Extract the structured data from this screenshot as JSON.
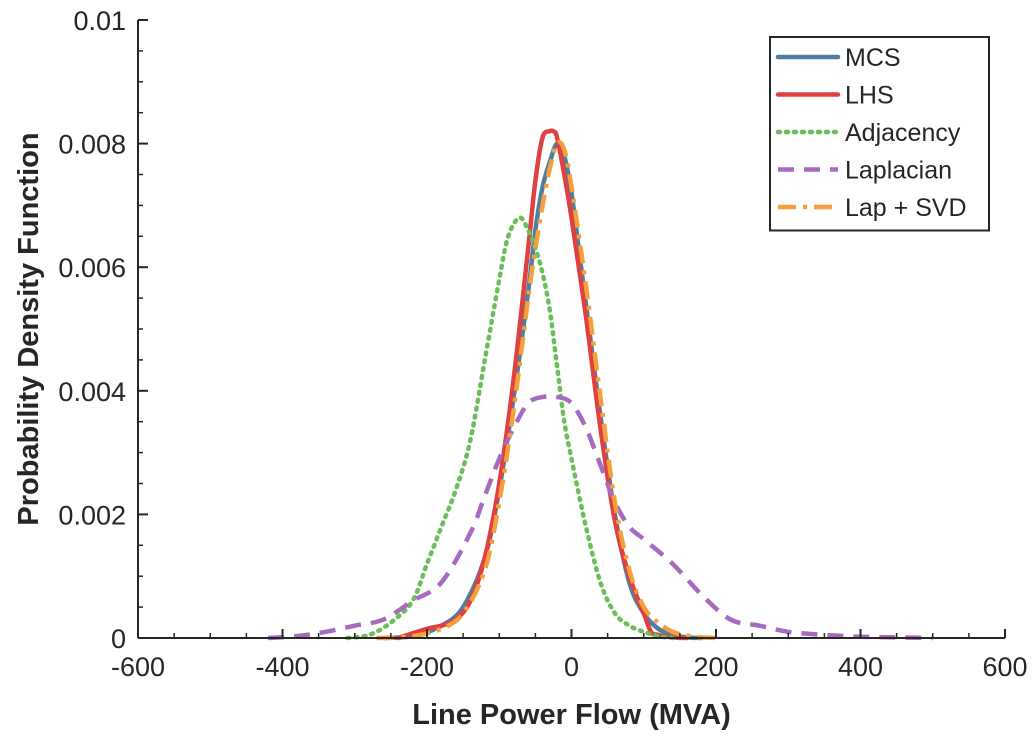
{
  "chart_data": {
    "type": "line",
    "xlabel": "Line Power Flow (MVA)",
    "ylabel": "Probability Density Function",
    "xlim": [
      -600,
      600
    ],
    "ylim": [
      0,
      0.01
    ],
    "xticks": [
      -600,
      -400,
      -200,
      0,
      200,
      400,
      600
    ],
    "xtick_labels": [
      "-600",
      "-400",
      "-200",
      "0",
      "200",
      "400",
      "600"
    ],
    "yticks": [
      0,
      0.002,
      0.004,
      0.006,
      0.008,
      0.01
    ],
    "ytick_labels": [
      "0",
      "0.002",
      "0.004",
      "0.006",
      "0.008",
      "0.01"
    ],
    "grid": false,
    "legend_position": "top-right",
    "series": [
      {
        "name": "MCS",
        "color": "#4f7ea3",
        "dash": "solid",
        "x": [
          -260,
          -220,
          -180,
          -150,
          -120,
          -100,
          -80,
          -60,
          -50,
          -40,
          -30,
          -20,
          -10,
          0,
          10,
          20,
          40,
          60,
          80,
          100,
          120,
          140,
          160,
          180
        ],
        "y": [
          0.0,
          3e-05,
          0.0002,
          0.0005,
          0.0013,
          0.0024,
          0.0039,
          0.0056,
          0.0066,
          0.0073,
          0.0077,
          0.008,
          0.0078,
          0.0072,
          0.0063,
          0.0054,
          0.0036,
          0.002,
          0.0009,
          0.0004,
          0.00015,
          5e-05,
          1e-05,
          0.0
        ]
      },
      {
        "name": "LHS",
        "color": "#e04040",
        "dash": "solid",
        "x": [
          -240,
          -200,
          -180,
          -160,
          -140,
          -120,
          -100,
          -80,
          -60,
          -50,
          -40,
          -30,
          -25,
          -20,
          -10,
          0,
          20,
          40,
          60,
          80,
          100,
          110,
          120,
          140,
          160
        ],
        "y": [
          0.0,
          0.00015,
          0.0002,
          0.0003,
          0.0006,
          0.0013,
          0.0025,
          0.0042,
          0.0063,
          0.0074,
          0.0081,
          0.0082,
          0.0082,
          0.0081,
          0.0075,
          0.0068,
          0.0052,
          0.0034,
          0.0019,
          0.001,
          0.0004,
          0.0001,
          5e-05,
          1e-05,
          0.0
        ]
      },
      {
        "name": "Adjacency",
        "color": "#6bbf59",
        "dash": "dotted",
        "x": [
          -310,
          -280,
          -250,
          -220,
          -200,
          -180,
          -160,
          -140,
          -120,
          -100,
          -90,
          -80,
          -70,
          -60,
          -50,
          -40,
          -30,
          -20,
          -10,
          0,
          20,
          40,
          60,
          80,
          100,
          120,
          140
        ],
        "y": [
          0.0,
          5e-05,
          0.00025,
          0.0006,
          0.0012,
          0.0018,
          0.0024,
          0.0032,
          0.0045,
          0.0058,
          0.0064,
          0.0067,
          0.0068,
          0.0066,
          0.0063,
          0.0059,
          0.0053,
          0.0044,
          0.0035,
          0.0029,
          0.0018,
          0.0009,
          0.0004,
          0.0002,
          0.0001,
          3e-05,
          0.0
        ]
      },
      {
        "name": "Laplacian",
        "color": "#a66bbe",
        "dash": "dashed",
        "x": [
          -420,
          -380,
          -340,
          -300,
          -260,
          -220,
          -180,
          -140,
          -120,
          -100,
          -80,
          -60,
          -40,
          -20,
          0,
          20,
          40,
          60,
          80,
          100,
          140,
          180,
          220,
          260,
          300,
          350,
          400,
          450,
          500
        ],
        "y": [
          0.0,
          3e-05,
          0.0001,
          0.0002,
          0.0003,
          0.0006,
          0.0009,
          0.0017,
          0.0023,
          0.0029,
          0.0034,
          0.0038,
          0.0039,
          0.0039,
          0.0038,
          0.0034,
          0.0028,
          0.0022,
          0.0018,
          0.0016,
          0.0012,
          0.0007,
          0.0003,
          0.0002,
          0.0001,
          5e-05,
          2e-05,
          1e-05,
          0.0
        ]
      },
      {
        "name": "Lap + SVD",
        "color": "#f5a03a",
        "dash": "dashdot",
        "x": [
          -270,
          -220,
          -180,
          -150,
          -120,
          -100,
          -80,
          -60,
          -50,
          -40,
          -30,
          -20,
          -10,
          0,
          20,
          40,
          60,
          80,
          100,
          120,
          140,
          160,
          180,
          200
        ],
        "y": [
          0.0,
          3e-05,
          0.00015,
          0.0004,
          0.0011,
          0.0022,
          0.0037,
          0.0055,
          0.0063,
          0.007,
          0.0076,
          0.008,
          0.0079,
          0.0073,
          0.0057,
          0.0039,
          0.0022,
          0.0011,
          0.0005,
          0.00025,
          0.0001,
          4e-05,
          1e-05,
          0.0
        ]
      }
    ]
  }
}
